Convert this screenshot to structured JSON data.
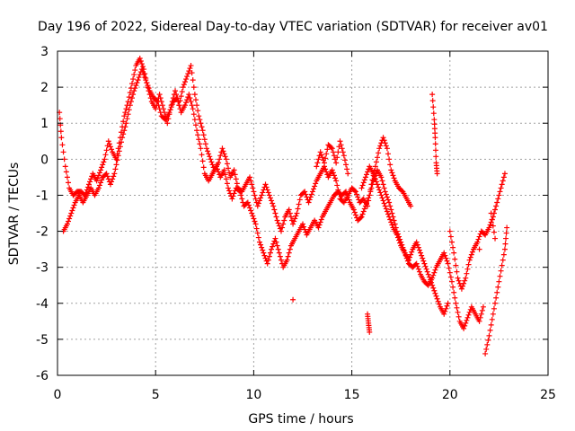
{
  "chart_data": {
    "type": "scatter",
    "title": "Day 196 of 2022, Sidereal Day-to-day VTEC variation (SDTVAR) for receiver av01",
    "xlabel": "GPS time / hours",
    "ylabel": "SDTVAR / TECUs",
    "xlim": [
      0,
      25
    ],
    "ylim": [
      -6,
      3
    ],
    "xticks": [
      0,
      5,
      10,
      15,
      20,
      25
    ],
    "xtick_labels": [
      "0",
      "5",
      "10",
      "15",
      "20",
      "25"
    ],
    "yticks": [
      -6,
      -5,
      -4,
      -3,
      -2,
      -1,
      0,
      1,
      2,
      3
    ],
    "ytick_labels": [
      "-6",
      "-5",
      "-4",
      "-3",
      "-2",
      "-1",
      "0",
      "1",
      "2",
      "3"
    ],
    "grid": true,
    "marker": "+",
    "color": "#ff0000",
    "series": [
      {
        "name": "s1",
        "points": [
          [
            0.1,
            1.3
          ],
          [
            0.2,
            0.6
          ],
          [
            0.4,
            -0.2
          ],
          [
            0.6,
            -0.8
          ],
          [
            0.8,
            -1.0
          ],
          [
            1.0,
            -0.9
          ],
          [
            1.2,
            -0.9
          ],
          [
            1.4,
            -1.0
          ],
          [
            1.6,
            -0.7
          ],
          [
            1.8,
            -0.4
          ],
          [
            2.0,
            -0.6
          ],
          [
            2.2,
            -0.3
          ],
          [
            2.4,
            0.0
          ],
          [
            2.6,
            0.5
          ],
          [
            2.8,
            0.2
          ],
          [
            3.0,
            0.0
          ],
          [
            3.2,
            0.6
          ],
          [
            3.4,
            1.2
          ],
          [
            3.6,
            1.6
          ],
          [
            3.8,
            2.1
          ],
          [
            4.0,
            2.6
          ],
          [
            4.2,
            2.8
          ],
          [
            4.4,
            2.5
          ],
          [
            4.6,
            2.0
          ],
          [
            4.8,
            1.6
          ],
          [
            5.0,
            1.4
          ],
          [
            5.2,
            1.8
          ],
          [
            5.4,
            1.4
          ],
          [
            5.6,
            1.0
          ],
          [
            5.8,
            1.5
          ],
          [
            6.0,
            1.9
          ],
          [
            6.2,
            1.5
          ],
          [
            6.4,
            2.0
          ],
          [
            6.6,
            2.3
          ],
          [
            6.8,
            2.6
          ],
          [
            7.0,
            1.8
          ],
          [
            7.2,
            1.2
          ],
          [
            7.4,
            0.8
          ],
          [
            7.6,
            0.3
          ],
          [
            7.8,
            0.0
          ],
          [
            8.0,
            -0.3
          ],
          [
            8.2,
            -0.1
          ],
          [
            8.4,
            0.3
          ],
          [
            8.6,
            0.0
          ],
          [
            8.8,
            -0.5
          ],
          [
            9.0,
            -0.3
          ],
          [
            9.2,
            -0.8
          ],
          [
            9.4,
            -0.9
          ],
          [
            9.6,
            -0.7
          ],
          [
            9.8,
            -0.5
          ],
          [
            10.0,
            -0.9
          ],
          [
            10.2,
            -1.3
          ],
          [
            10.4,
            -1.0
          ],
          [
            10.6,
            -0.7
          ],
          [
            10.8,
            -1.0
          ],
          [
            11.0,
            -1.3
          ],
          [
            11.2,
            -1.7
          ],
          [
            11.4,
            -2.0
          ],
          [
            11.6,
            -1.6
          ],
          [
            11.8,
            -1.4
          ],
          [
            12.0,
            -1.8
          ],
          [
            12.2,
            -1.5
          ],
          [
            12.4,
            -1.0
          ],
          [
            12.6,
            -0.9
          ],
          [
            12.8,
            -1.2
          ],
          [
            13.0,
            -0.9
          ],
          [
            13.2,
            -0.6
          ],
          [
            13.4,
            -0.4
          ],
          [
            13.6,
            -0.2
          ],
          [
            13.8,
            -0.5
          ],
          [
            14.0,
            -0.3
          ],
          [
            14.2,
            -0.6
          ],
          [
            14.4,
            -1.1
          ],
          [
            14.6,
            -1.2
          ],
          [
            14.8,
            -1.0
          ],
          [
            15.0,
            -0.8
          ],
          [
            15.2,
            -0.9
          ],
          [
            15.4,
            -1.2
          ],
          [
            15.6,
            -1.1
          ],
          [
            15.8,
            -1.3
          ],
          [
            16.0,
            -0.7
          ],
          [
            16.2,
            -0.2
          ],
          [
            16.4,
            0.3
          ],
          [
            16.6,
            0.6
          ],
          [
            16.8,
            0.3
          ],
          [
            17.0,
            -0.3
          ],
          [
            17.2,
            -0.6
          ],
          [
            17.4,
            -0.8
          ],
          [
            17.6,
            -0.9
          ],
          [
            17.8,
            -1.1
          ],
          [
            18.0,
            -1.3
          ]
        ]
      },
      {
        "name": "s2",
        "points": [
          [
            0.3,
            -2.0
          ],
          [
            0.5,
            -1.8
          ],
          [
            0.7,
            -1.5
          ],
          [
            0.9,
            -1.2
          ],
          [
            1.1,
            -1.0
          ],
          [
            1.3,
            -1.2
          ],
          [
            1.5,
            -1.0
          ],
          [
            1.7,
            -0.8
          ],
          [
            1.9,
            -1.0
          ],
          [
            2.1,
            -0.8
          ],
          [
            2.3,
            -0.5
          ],
          [
            2.5,
            -0.4
          ],
          [
            2.7,
            -0.7
          ],
          [
            2.9,
            -0.4
          ],
          [
            3.1,
            0.1
          ],
          [
            3.3,
            0.6
          ],
          [
            3.5,
            1.0
          ],
          [
            3.7,
            1.5
          ],
          [
            3.9,
            1.9
          ],
          [
            4.1,
            2.2
          ],
          [
            4.3,
            2.5
          ],
          [
            4.5,
            2.2
          ],
          [
            4.7,
            1.9
          ],
          [
            4.9,
            1.7
          ],
          [
            5.1,
            1.6
          ],
          [
            5.3,
            1.2
          ],
          [
            5.5,
            1.1
          ],
          [
            5.7,
            1.3
          ],
          [
            5.9,
            1.6
          ],
          [
            6.1,
            1.7
          ],
          [
            6.3,
            1.3
          ],
          [
            6.5,
            1.5
          ],
          [
            6.7,
            1.8
          ],
          [
            6.9,
            1.4
          ],
          [
            7.1,
            0.8
          ],
          [
            7.3,
            0.3
          ],
          [
            7.5,
            -0.4
          ],
          [
            7.7,
            -0.6
          ],
          [
            7.9,
            -0.4
          ],
          [
            8.1,
            -0.2
          ],
          [
            8.3,
            -0.5
          ],
          [
            8.5,
            -0.3
          ],
          [
            8.7,
            -0.8
          ],
          [
            8.9,
            -1.1
          ],
          [
            9.1,
            -0.8
          ],
          [
            9.3,
            -0.9
          ],
          [
            9.5,
            -1.3
          ],
          [
            9.7,
            -1.2
          ],
          [
            9.9,
            -1.5
          ],
          [
            10.1,
            -1.8
          ],
          [
            10.3,
            -2.3
          ],
          [
            10.5,
            -2.6
          ],
          [
            10.7,
            -2.9
          ],
          [
            10.9,
            -2.5
          ],
          [
            11.1,
            -2.2
          ],
          [
            11.3,
            -2.6
          ],
          [
            11.5,
            -3.0
          ],
          [
            11.7,
            -2.8
          ],
          [
            11.9,
            -2.4
          ],
          [
            12.1,
            -2.2
          ],
          [
            12.3,
            -2.0
          ],
          [
            12.5,
            -1.8
          ],
          [
            12.7,
            -2.1
          ],
          [
            12.9,
            -1.9
          ],
          [
            13.1,
            -1.7
          ],
          [
            13.3,
            -1.9
          ],
          [
            13.5,
            -1.6
          ],
          [
            13.7,
            -1.4
          ],
          [
            13.9,
            -1.2
          ],
          [
            14.1,
            -1.0
          ],
          [
            14.3,
            -0.9
          ],
          [
            14.5,
            -1.0
          ],
          [
            14.7,
            -0.9
          ],
          [
            14.9,
            -1.2
          ],
          [
            15.1,
            -1.4
          ],
          [
            15.3,
            -1.7
          ],
          [
            15.5,
            -1.6
          ],
          [
            15.7,
            -1.3
          ],
          [
            15.9,
            -1.0
          ],
          [
            16.1,
            -0.6
          ],
          [
            16.3,
            -0.3
          ],
          [
            16.5,
            -0.5
          ],
          [
            16.7,
            -0.9
          ],
          [
            16.9,
            -1.2
          ],
          [
            17.1,
            -1.6
          ],
          [
            17.3,
            -2.0
          ],
          [
            17.5,
            -2.3
          ],
          [
            17.7,
            -2.6
          ],
          [
            17.9,
            -2.8
          ],
          [
            18.1,
            -2.5
          ],
          [
            18.3,
            -2.3
          ],
          [
            18.5,
            -2.6
          ],
          [
            18.7,
            -2.9
          ],
          [
            18.9,
            -3.2
          ],
          [
            19.1,
            -3.5
          ],
          [
            19.3,
            -3.8
          ],
          [
            19.5,
            -4.1
          ],
          [
            19.7,
            -4.3
          ],
          [
            19.9,
            -4.0
          ]
        ]
      },
      {
        "name": "s3",
        "points": [
          [
            15.5,
            -0.8
          ],
          [
            15.7,
            -0.5
          ],
          [
            15.9,
            -0.2
          ],
          [
            16.1,
            -0.4
          ],
          [
            16.3,
            -0.7
          ],
          [
            16.5,
            -1.0
          ],
          [
            16.7,
            -1.3
          ],
          [
            16.9,
            -1.6
          ],
          [
            17.1,
            -1.9
          ],
          [
            17.3,
            -2.1
          ],
          [
            17.5,
            -2.4
          ],
          [
            17.7,
            -2.6
          ],
          [
            17.9,
            -2.9
          ],
          [
            18.1,
            -3.0
          ],
          [
            18.3,
            -2.9
          ],
          [
            18.5,
            -3.2
          ],
          [
            18.7,
            -3.4
          ],
          [
            18.9,
            -3.5
          ],
          [
            19.1,
            -3.3
          ],
          [
            19.3,
            -3.0
          ],
          [
            19.5,
            -2.8
          ],
          [
            19.7,
            -2.6
          ],
          [
            19.9,
            -2.9
          ],
          [
            20.1,
            -3.4
          ],
          [
            20.3,
            -4.0
          ],
          [
            20.5,
            -4.5
          ],
          [
            20.7,
            -4.7
          ],
          [
            20.9,
            -4.4
          ],
          [
            21.1,
            -4.1
          ],
          [
            21.3,
            -4.3
          ],
          [
            21.5,
            -4.5
          ],
          [
            21.7,
            -4.1
          ]
        ]
      },
      {
        "name": "s4",
        "points": [
          [
            13.2,
            -0.2
          ],
          [
            13.4,
            0.2
          ],
          [
            13.6,
            -0.1
          ],
          [
            13.8,
            0.4
          ],
          [
            14.0,
            0.3
          ],
          [
            14.2,
            -0.1
          ],
          [
            14.4,
            0.5
          ],
          [
            14.6,
            0.1
          ],
          [
            14.8,
            -0.4
          ]
        ]
      },
      {
        "name": "s5",
        "points": [
          [
            20.0,
            -2.0
          ],
          [
            20.2,
            -2.6
          ],
          [
            20.4,
            -3.3
          ],
          [
            20.6,
            -3.6
          ],
          [
            20.8,
            -3.3
          ],
          [
            21.0,
            -2.8
          ],
          [
            21.2,
            -2.5
          ],
          [
            21.4,
            -2.3
          ],
          [
            21.6,
            -2.0
          ],
          [
            21.8,
            -2.1
          ],
          [
            22.0,
            -1.9
          ],
          [
            22.2,
            -1.6
          ],
          [
            22.4,
            -1.2
          ],
          [
            22.6,
            -0.8
          ],
          [
            22.8,
            -0.4
          ]
        ]
      },
      {
        "name": "s6",
        "points": [
          [
            21.8,
            -5.4
          ],
          [
            22.0,
            -4.9
          ],
          [
            22.2,
            -4.3
          ],
          [
            22.4,
            -3.7
          ],
          [
            22.6,
            -3.1
          ],
          [
            22.8,
            -2.5
          ],
          [
            22.9,
            -1.9
          ]
        ]
      },
      {
        "name": "s7",
        "points": [
          [
            15.8,
            -4.3
          ],
          [
            15.85,
            -4.55
          ],
          [
            15.9,
            -4.8
          ],
          [
            19.1,
            1.8
          ],
          [
            19.2,
            1.1
          ],
          [
            19.25,
            0.6
          ],
          [
            19.3,
            -0.1
          ],
          [
            19.35,
            -0.4
          ],
          [
            12.0,
            -3.9
          ],
          [
            21.5,
            -2.5
          ],
          [
            22.1,
            -1.5
          ],
          [
            22.3,
            -2.2
          ]
        ]
      }
    ]
  }
}
